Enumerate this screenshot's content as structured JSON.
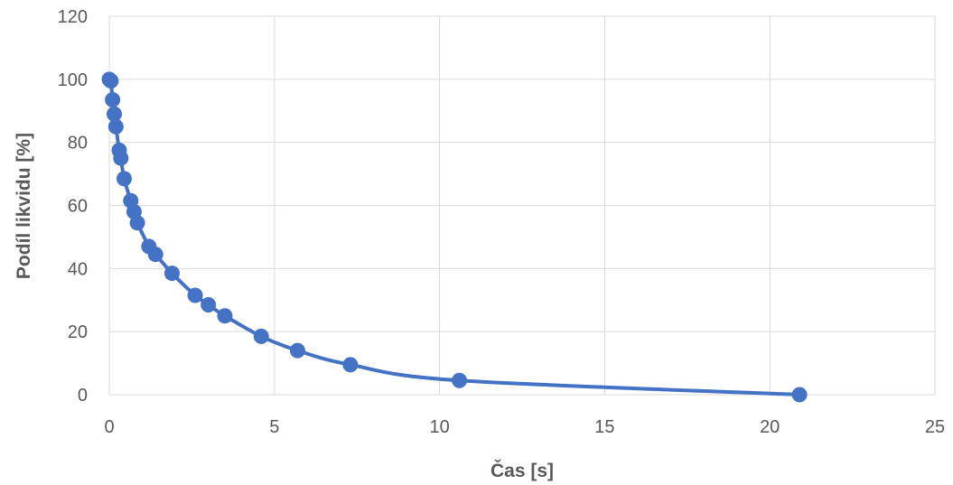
{
  "chart_data": {
    "type": "scatter",
    "xlabel": "Čas [s]",
    "ylabel": "Podíl likvidu [%]",
    "xlim": [
      0,
      25
    ],
    "ylim": [
      0,
      120
    ],
    "x_ticks": [
      "0",
      "5",
      "10",
      "15",
      "20",
      "25"
    ],
    "y_ticks": [
      "0",
      "20",
      "40",
      "60",
      "80",
      "100",
      "120"
    ],
    "grid": true,
    "legend": "none",
    "series_color": "#4472C4",
    "series": [
      {
        "points": [
          [
            0.0,
            100
          ],
          [
            0.05,
            99.5
          ],
          [
            0.1,
            93.5
          ],
          [
            0.15,
            89
          ],
          [
            0.2,
            85
          ],
          [
            0.3,
            77.5
          ],
          [
            0.35,
            75
          ],
          [
            0.45,
            68.5
          ],
          [
            0.65,
            61.5
          ],
          [
            0.75,
            58
          ],
          [
            0.85,
            54.5
          ],
          [
            1.2,
            47
          ],
          [
            1.4,
            44.5
          ],
          [
            1.9,
            38.5
          ],
          [
            2.6,
            31.5
          ],
          [
            3.0,
            28.5
          ],
          [
            3.5,
            25
          ],
          [
            4.6,
            18.5
          ],
          [
            5.7,
            14
          ],
          [
            7.3,
            9.5
          ],
          [
            10.6,
            4.5
          ],
          [
            20.9,
            0
          ]
        ]
      }
    ]
  }
}
